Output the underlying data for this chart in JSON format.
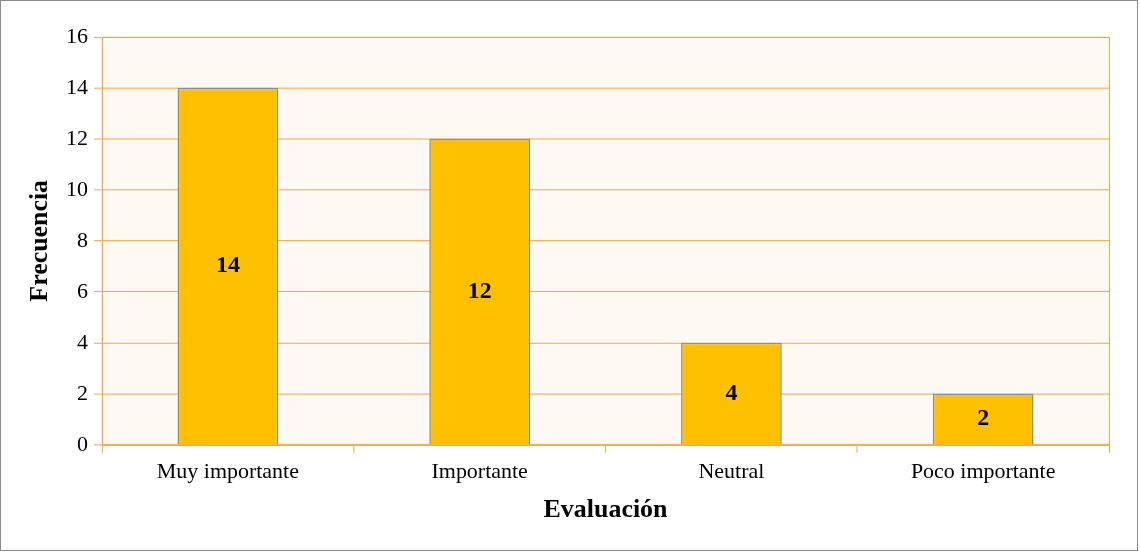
{
  "chart_data": {
    "type": "bar",
    "xlabel": "Evaluación",
    "ylabel": "Frecuencia",
    "categories": [
      "Muy importante",
      "Importante",
      "Neutral",
      "Poco importante"
    ],
    "values": [
      14,
      12,
      4,
      2
    ],
    "color": "#ffc000",
    "ylim": [
      0,
      16
    ],
    "yticks": [
      0,
      2,
      4,
      6,
      8,
      10,
      12,
      14,
      16
    ],
    "grid": "y",
    "data_labels": true,
    "legend": false
  }
}
